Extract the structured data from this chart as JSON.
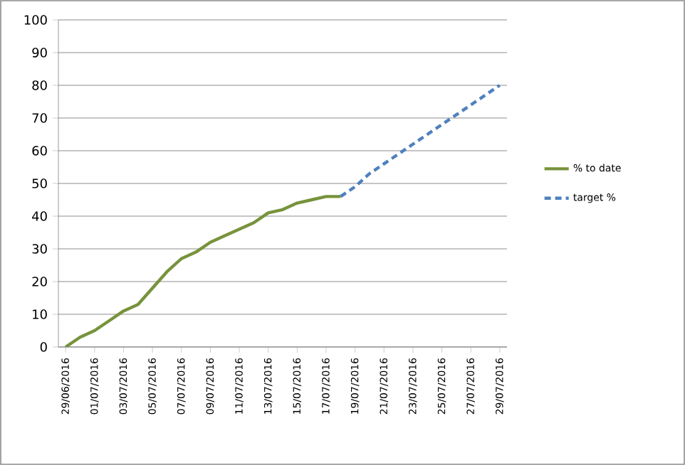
{
  "chart_data": {
    "type": "line",
    "categories": [
      "29/06/2016",
      null,
      "01/07/2016",
      null,
      "03/07/2016",
      null,
      "05/07/2016",
      null,
      "07/07/2016",
      null,
      "09/07/2016",
      null,
      "11/07/2016",
      null,
      "13/07/2016",
      null,
      "15/07/2016",
      null,
      "17/07/2016",
      null,
      "19/07/2016",
      null,
      "21/07/2016",
      null,
      "23/07/2016",
      null,
      "25/07/2016",
      null,
      "27/07/2016",
      null,
      "29/07/2016"
    ],
    "series": [
      {
        "name": "% to date",
        "color": "#77933c",
        "line_style": "solid",
        "values": [
          0,
          3,
          5,
          8,
          11,
          13,
          18,
          23,
          27,
          29,
          32,
          34,
          36,
          38,
          41,
          42,
          44,
          45,
          46,
          46,
          null,
          null,
          null,
          null,
          null,
          null,
          null,
          null,
          null,
          null,
          null
        ]
      },
      {
        "name": "target %",
        "color": "#4f81bd",
        "line_style": "dashed",
        "values": [
          null,
          null,
          null,
          null,
          null,
          null,
          null,
          null,
          null,
          null,
          null,
          null,
          null,
          null,
          null,
          null,
          null,
          null,
          null,
          46,
          49,
          53,
          56,
          59,
          62,
          65,
          68,
          71,
          74,
          77,
          80
        ]
      }
    ],
    "ylim": [
      0,
      100
    ],
    "yticks": [
      0,
      10,
      20,
      30,
      40,
      50,
      60,
      70,
      80,
      90,
      100
    ],
    "grid": "y",
    "legend": "right",
    "marker": "none"
  }
}
